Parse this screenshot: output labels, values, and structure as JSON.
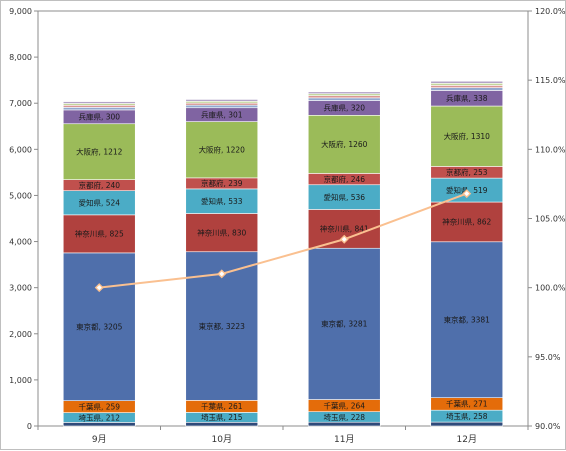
{
  "chart_data": {
    "type": "bar",
    "stacked": true,
    "categories": [
      "9月",
      "10月",
      "11月",
      "12月"
    ],
    "series": [
      {
        "name": "",
        "color": "#2f4a7a",
        "values": [
          78,
          80,
          82,
          85
        ]
      },
      {
        "name": "埼玉県",
        "color": "#4bacc6",
        "values": [
          212,
          215,
          228,
          258
        ]
      },
      {
        "name": "千葉県",
        "color": "#e46c0a",
        "values": [
          259,
          261,
          264,
          271
        ]
      },
      {
        "name": "東京都",
        "color": "#4f6fab",
        "values": [
          3205,
          3223,
          3281,
          3381
        ]
      },
      {
        "name": "神奈川県",
        "color": "#b0413e",
        "values": [
          825,
          830,
          841,
          862
        ]
      },
      {
        "name": "愛知県",
        "color": "#4bacc6",
        "values": [
          524,
          533,
          536,
          519
        ]
      },
      {
        "name": "京都府",
        "color": "#c0504d",
        "values": [
          240,
          239,
          246,
          253
        ]
      },
      {
        "name": "大阪府",
        "color": "#9bbb59",
        "values": [
          1212,
          1220,
          1260,
          1310
        ]
      },
      {
        "name": "兵庫県",
        "color": "#8064a2",
        "values": [
          300,
          301,
          320,
          338
        ]
      },
      {
        "name": "",
        "color": "#93a9cf",
        "values": [
          55,
          55,
          58,
          60
        ]
      },
      {
        "name": "",
        "color": "#d99694",
        "values": [
          45,
          45,
          48,
          50
        ]
      },
      {
        "name": "",
        "color": "#c3d69b",
        "values": [
          40,
          40,
          42,
          45
        ]
      },
      {
        "name": "",
        "color": "#b3a2c7",
        "values": [
          40,
          40,
          42,
          45
        ]
      }
    ],
    "line": {
      "color": "#fac090",
      "values": [
        100.0,
        101.0,
        103.5,
        106.8
      ]
    },
    "y_left": {
      "min": 0,
      "max": 9000,
      "step": 1000,
      "ticks": [
        "0",
        "1,000",
        "2,000",
        "3,000",
        "4,000",
        "5,000",
        "6,000",
        "7,000",
        "8,000",
        "9,000"
      ]
    },
    "y_right": {
      "min": 90,
      "max": 120,
      "step": 5,
      "ticks": [
        "90.0%",
        "95.0%",
        "100.0%",
        "105.0%",
        "110.0%",
        "115.0%",
        "120.0%"
      ]
    },
    "title": "",
    "xlabel": "",
    "ylabel": "",
    "legend": "none",
    "grid": false
  }
}
